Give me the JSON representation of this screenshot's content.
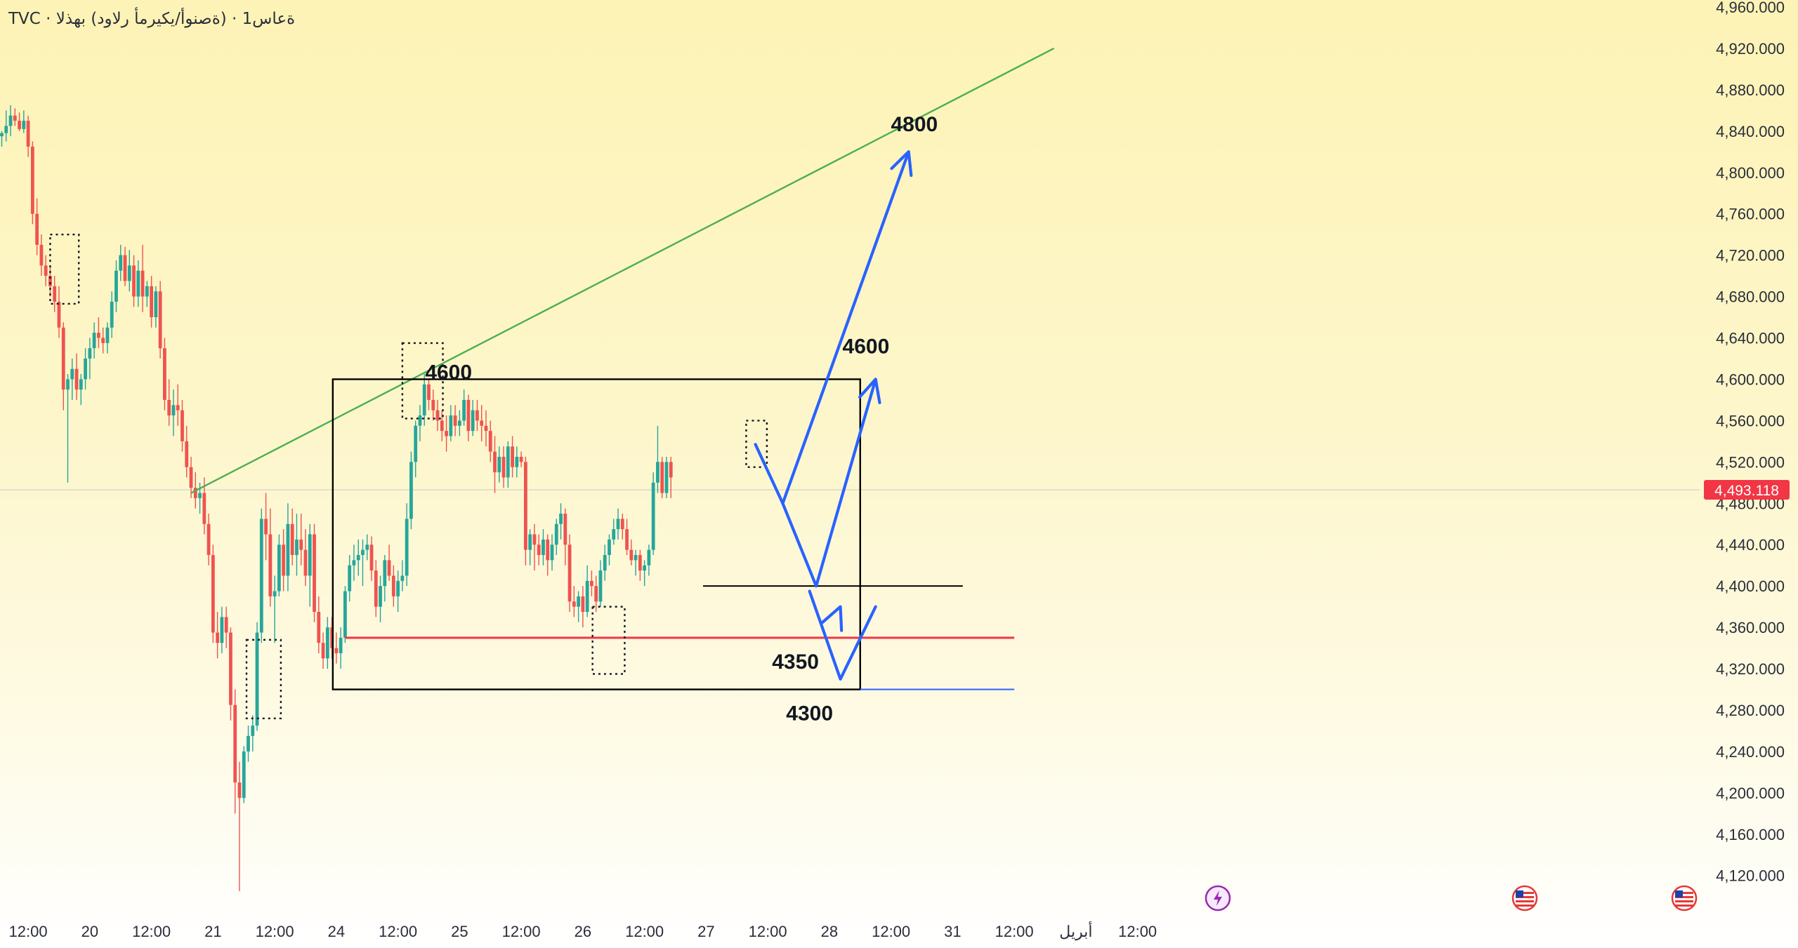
{
  "header": {
    "symbol_title": "TVC · ةعاس1 · (ةصنوأ/يكيرمأ رلاود) بهذلا"
  },
  "price_tag": {
    "label": "4,493.118",
    "value": 4493.118,
    "color": "#f23645"
  },
  "colors": {
    "up": "#26a69a",
    "down": "#ef5350",
    "trendline": "#4caf50",
    "projection": "#2962ff",
    "support": "#f23645",
    "box": "#000000"
  },
  "chart_data": {
    "type": "candlestick",
    "y_axis": {
      "ylim": [
        4090,
        4960
      ],
      "ticks": [
        "4,960.000",
        "4,920.000",
        "4,880.000",
        "4,840.000",
        "4,800.000",
        "4,760.000",
        "4,720.000",
        "4,680.000",
        "4,640.000",
        "4,600.000",
        "4,560.000",
        "4,520.000",
        "4,480.000",
        "4,440.000",
        "4,400.000",
        "4,360.000",
        "4,320.000",
        "4,280.000",
        "4,240.000",
        "4,200.000",
        "4,160.000",
        "4,120.000"
      ],
      "tick_values": [
        4960,
        4920,
        4880,
        4840,
        4800,
        4760,
        4720,
        4680,
        4640,
        4600,
        4560,
        4520,
        4480,
        4440,
        4400,
        4360,
        4320,
        4280,
        4240,
        4200,
        4160,
        4120
      ]
    },
    "x_axis": {
      "labels": [
        "12:00",
        "20",
        "12:00",
        "21",
        "12:00",
        "24",
        "12:00",
        "25",
        "12:00",
        "26",
        "12:00",
        "27",
        "12:00",
        "28",
        "12:00",
        "31",
        "12:00",
        "أبريل",
        "12:00"
      ],
      "label_bars": [
        6,
        20,
        34,
        48,
        62,
        76,
        90,
        104,
        118,
        132,
        146,
        160,
        174,
        188,
        202,
        216,
        230,
        244,
        258
      ]
    },
    "ohlc": [
      [
        4835,
        4840,
        4825,
        4838
      ],
      [
        4838,
        4860,
        4830,
        4845
      ],
      [
        4845,
        4865,
        4835,
        4855
      ],
      [
        4855,
        4862,
        4845,
        4850
      ],
      [
        4850,
        4858,
        4840,
        4842
      ],
      [
        4842,
        4860,
        4838,
        4850
      ],
      [
        4850,
        4855,
        4815,
        4825
      ],
      [
        4825,
        4830,
        4750,
        4760
      ],
      [
        4760,
        4775,
        4720,
        4730
      ],
      [
        4730,
        4740,
        4700,
        4710
      ],
      [
        4710,
        4720,
        4690,
        4700
      ],
      [
        4700,
        4710,
        4680,
        4690
      ],
      [
        4690,
        4700,
        4665,
        4675
      ],
      [
        4675,
        4690,
        4640,
        4650
      ],
      [
        4650,
        4655,
        4570,
        4590
      ],
      [
        4590,
        4605,
        4500,
        4600
      ],
      [
        4600,
        4620,
        4580,
        4610
      ],
      [
        4610,
        4625,
        4580,
        4590
      ],
      [
        4590,
        4605,
        4575,
        4600
      ],
      [
        4600,
        4630,
        4590,
        4620
      ],
      [
        4620,
        4640,
        4600,
        4630
      ],
      [
        4630,
        4655,
        4620,
        4645
      ],
      [
        4645,
        4660,
        4630,
        4640
      ],
      [
        4640,
        4650,
        4625,
        4635
      ],
      [
        4635,
        4655,
        4625,
        4650
      ],
      [
        4650,
        4685,
        4640,
        4675
      ],
      [
        4675,
        4715,
        4665,
        4705
      ],
      [
        4705,
        4730,
        4695,
        4720
      ],
      [
        4720,
        4728,
        4690,
        4695
      ],
      [
        4695,
        4725,
        4685,
        4710
      ],
      [
        4710,
        4720,
        4670,
        4680
      ],
      [
        4680,
        4715,
        4670,
        4705
      ],
      [
        4705,
        4730,
        4665,
        4680
      ],
      [
        4680,
        4695,
        4670,
        4690
      ],
      [
        4690,
        4700,
        4650,
        4660
      ],
      [
        4660,
        4690,
        4650,
        4685
      ],
      [
        4685,
        4695,
        4620,
        4630
      ],
      [
        4630,
        4640,
        4570,
        4580
      ],
      [
        4580,
        4600,
        4555,
        4565
      ],
      [
        4565,
        4590,
        4545,
        4575
      ],
      [
        4575,
        4595,
        4555,
        4570
      ],
      [
        4570,
        4580,
        4530,
        4540
      ],
      [
        4540,
        4555,
        4505,
        4515
      ],
      [
        4515,
        4525,
        4485,
        4495
      ],
      [
        4495,
        4510,
        4475,
        4485
      ],
      [
        4485,
        4500,
        4470,
        4490
      ],
      [
        4490,
        4505,
        4450,
        4460
      ],
      [
        4460,
        4470,
        4420,
        4430
      ],
      [
        4430,
        4440,
        4345,
        4355
      ],
      [
        4355,
        4375,
        4330,
        4345
      ],
      [
        4345,
        4380,
        4335,
        4370
      ],
      [
        4370,
        4380,
        4340,
        4355
      ],
      [
        4355,
        4360,
        4270,
        4285
      ],
      [
        4285,
        4300,
        4180,
        4210
      ],
      [
        4210,
        4230,
        4105,
        4195
      ],
      [
        4195,
        4245,
        4190,
        4240
      ],
      [
        4240,
        4265,
        4230,
        4255
      ],
      [
        4255,
        4275,
        4240,
        4265
      ],
      [
        4265,
        4365,
        4260,
        4355
      ],
      [
        4355,
        4475,
        4345,
        4465
      ],
      [
        4465,
        4490,
        4425,
        4450
      ],
      [
        4450,
        4475,
        4380,
        4390
      ],
      [
        4390,
        4410,
        4345,
        4395
      ],
      [
        4395,
        4450,
        4390,
        4440
      ],
      [
        4440,
        4455,
        4395,
        4410
      ],
      [
        4410,
        4480,
        4395,
        4460
      ],
      [
        4460,
        4475,
        4420,
        4430
      ],
      [
        4430,
        4470,
        4410,
        4445
      ],
      [
        4445,
        4470,
        4420,
        4435
      ],
      [
        4435,
        4455,
        4400,
        4410
      ],
      [
        4410,
        4460,
        4380,
        4450
      ],
      [
        4450,
        4460,
        4365,
        4375
      ],
      [
        4375,
        4390,
        4335,
        4345
      ],
      [
        4345,
        4355,
        4320,
        4330
      ],
      [
        4330,
        4370,
        4320,
        4360
      ],
      [
        4360,
        4370,
        4330,
        4340
      ],
      [
        4340,
        4355,
        4325,
        4335
      ],
      [
        4335,
        4360,
        4320,
        4350
      ],
      [
        4350,
        4400,
        4345,
        4395
      ],
      [
        4395,
        4430,
        4385,
        4420
      ],
      [
        4420,
        4440,
        4405,
        4425
      ],
      [
        4425,
        4445,
        4410,
        4430
      ],
      [
        4430,
        4445,
        4400,
        4435
      ],
      [
        4435,
        4450,
        4425,
        4440
      ],
      [
        4440,
        4448,
        4405,
        4415
      ],
      [
        4415,
        4425,
        4370,
        4380
      ],
      [
        4380,
        4410,
        4365,
        4400
      ],
      [
        4400,
        4430,
        4385,
        4425
      ],
      [
        4425,
        4440,
        4405,
        4410
      ],
      [
        4410,
        4420,
        4380,
        4390
      ],
      [
        4390,
        4415,
        4375,
        4405
      ],
      [
        4405,
        4425,
        4395,
        4410
      ],
      [
        4410,
        4480,
        4400,
        4465
      ],
      [
        4465,
        4530,
        4455,
        4520
      ],
      [
        4520,
        4560,
        4505,
        4555
      ],
      [
        4555,
        4575,
        4540,
        4565
      ],
      [
        4565,
        4605,
        4555,
        4595
      ],
      [
        4595,
        4600,
        4570,
        4580
      ],
      [
        4580,
        4590,
        4560,
        4570
      ],
      [
        4570,
        4580,
        4550,
        4560
      ],
      [
        4560,
        4570,
        4540,
        4550
      ],
      [
        4550,
        4565,
        4530,
        4545
      ],
      [
        4545,
        4575,
        4540,
        4565
      ],
      [
        4565,
        4575,
        4545,
        4555
      ],
      [
        4555,
        4570,
        4545,
        4560
      ],
      [
        4560,
        4590,
        4555,
        4580
      ],
      [
        4580,
        4585,
        4540,
        4550
      ],
      [
        4550,
        4580,
        4545,
        4570
      ],
      [
        4570,
        4580,
        4550,
        4560
      ],
      [
        4560,
        4575,
        4540,
        4555
      ],
      [
        4555,
        4570,
        4535,
        4550
      ],
      [
        4550,
        4560,
        4520,
        4530
      ],
      [
        4530,
        4545,
        4490,
        4510
      ],
      [
        4510,
        4535,
        4500,
        4525
      ],
      [
        4525,
        4535,
        4495,
        4505
      ],
      [
        4505,
        4540,
        4495,
        4535
      ],
      [
        4535,
        4545,
        4505,
        4515
      ],
      [
        4515,
        4535,
        4505,
        4525
      ],
      [
        4525,
        4530,
        4515,
        4520
      ],
      [
        4520,
        4525,
        4420,
        4435
      ],
      [
        4435,
        4455,
        4420,
        4450
      ],
      [
        4450,
        4460,
        4415,
        4440
      ],
      [
        4440,
        4450,
        4420,
        4430
      ],
      [
        4430,
        4455,
        4420,
        4445
      ],
      [
        4445,
        4450,
        4410,
        4425
      ],
      [
        4425,
        4450,
        4415,
        4440
      ],
      [
        4440,
        4465,
        4430,
        4460
      ],
      [
        4460,
        4480,
        4445,
        4470
      ],
      [
        4470,
        4475,
        4420,
        4440
      ],
      [
        4440,
        4450,
        4375,
        4385
      ],
      [
        4385,
        4400,
        4370,
        4380
      ],
      [
        4380,
        4395,
        4365,
        4390
      ],
      [
        4390,
        4400,
        4360,
        4375
      ],
      [
        4375,
        4420,
        4370,
        4405
      ],
      [
        4405,
        4415,
        4390,
        4400
      ],
      [
        4400,
        4410,
        4375,
        4385
      ],
      [
        4385,
        4425,
        4380,
        4415
      ],
      [
        4415,
        4440,
        4405,
        4430
      ],
      [
        4430,
        4450,
        4420,
        4445
      ],
      [
        4445,
        4465,
        4440,
        4455
      ],
      [
        4455,
        4475,
        4445,
        4465
      ],
      [
        4465,
        4470,
        4445,
        4455
      ],
      [
        4455,
        4465,
        4430,
        4435
      ],
      [
        4435,
        4445,
        4420,
        4425
      ],
      [
        4425,
        4435,
        4410,
        4430
      ],
      [
        4430,
        4435,
        4405,
        4415
      ],
      [
        4415,
        4425,
        4400,
        4420
      ],
      [
        4420,
        4440,
        4410,
        4435
      ],
      [
        4435,
        4510,
        4430,
        4500
      ],
      [
        4500,
        4555,
        4490,
        4520
      ],
      [
        4520,
        4525,
        4485,
        4490
      ],
      [
        4490,
        4525,
        4485,
        4520
      ],
      [
        4520,
        4525,
        4485,
        4505
      ]
    ],
    "annotations": {
      "labels": [
        "4600",
        "4800",
        "4600",
        "4350",
        "4300"
      ],
      "levels": [
        4600,
        4350,
        4300,
        4400
      ],
      "range_box": {
        "price_top": 4600,
        "price_bottom": 4300
      },
      "trendline": {
        "from": [
          43,
          4490
        ],
        "to": [
          239,
          4920
        ]
      },
      "projection_paths": [
        {
          "bars": [
            177.4,
            185,
            198.5
          ],
          "prices": [
            4480,
            4400,
            4600
          ]
        },
        {
          "bars": [
            177.4,
            206
          ],
          "prices": [
            4480,
            4820
          ]
        },
        {
          "bars": [
            183.5,
            190.5,
            198.5
          ],
          "prices": [
            4395,
            4310,
            4380
          ]
        },
        {
          "bars": [
            171.2,
            177.4
          ],
          "prices": [
            4537,
            4480
          ]
        }
      ],
      "dotted_boxes": [
        {
          "bar_from": 11,
          "bar_to": 17.5,
          "price_from": 4673,
          "price_to": 4740
        },
        {
          "bar_from": 91,
          "bar_to": 100.2,
          "price_from": 4562,
          "price_to": 4635
        },
        {
          "bar_from": 55.6,
          "bar_to": 63.4,
          "price_from": 4272,
          "price_to": 4348
        },
        {
          "bar_from": 134.2,
          "bar_to": 141.5,
          "price_from": 4315,
          "price_to": 4380
        },
        {
          "bar_from": 169.1,
          "bar_to": 173.8,
          "price_from": 4515,
          "price_to": 4560
        }
      ]
    }
  },
  "footer_icons": [
    "lightning-icon",
    "us-flag-icon",
    "us-flag-icon"
  ]
}
